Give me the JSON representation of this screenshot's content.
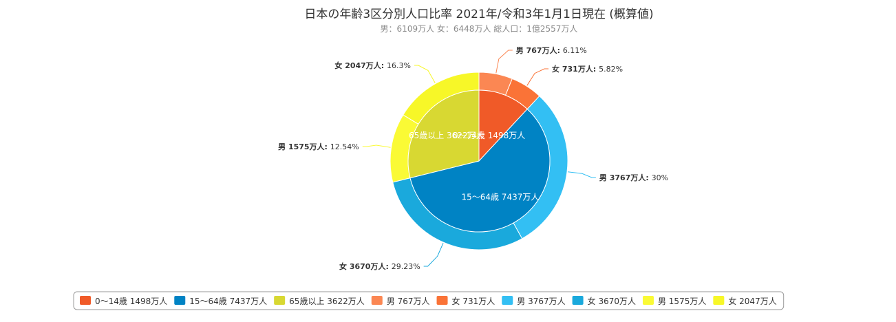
{
  "chart_data": {
    "type": "pie",
    "title": "日本の年齢3区分別人口比率 2021年/令和3年1月1日現在 (概算値)",
    "subtitle": "男：6109万人 女：6448万人 総人口：1億2557万人",
    "inner_ring": [
      {
        "name": "0〜14歳",
        "label": "0〜14歳 1498万人",
        "value": 1498,
        "color": "#f05a28"
      },
      {
        "name": "15〜64歳",
        "label": "15〜64歳 7437万人",
        "value": 7437,
        "color": "#0083c4"
      },
      {
        "name": "65歳以上",
        "label": "65歳以上 3622万人",
        "value": 3622,
        "color": "#d8d832"
      }
    ],
    "outer_ring": [
      {
        "sex": "男",
        "amount": "767万人",
        "label": "男 767万人",
        "value": 767,
        "percent": "6.11%",
        "color": "#fb8753",
        "side": "right"
      },
      {
        "sex": "女",
        "amount": "731万人",
        "label": "女 731万人",
        "value": 731,
        "percent": "5.82%",
        "color": "#fa7337",
        "side": "right"
      },
      {
        "sex": "男",
        "amount": "3767万人",
        "label": "男 3767万人",
        "value": 3767,
        "percent": "30%",
        "color": "#33bff3",
        "side": "right"
      },
      {
        "sex": "女",
        "amount": "3670万人",
        "label": "女 3670万人",
        "value": 3670,
        "percent": "29.23%",
        "color": "#1aa9dc",
        "side": "left"
      },
      {
        "sex": "男",
        "amount": "1575万人",
        "label": "男 1575万人",
        "value": 1575,
        "percent": "12.54%",
        "color": "#fafa35",
        "side": "left"
      },
      {
        "sex": "女",
        "amount": "2047万人",
        "label": "女 2047万人",
        "value": 2047,
        "percent": "16.3%",
        "color": "#f7f728",
        "side": "left"
      }
    ],
    "legend": [
      {
        "label": "0〜14歳 1498万人",
        "color": "#f05a28"
      },
      {
        "label": "15〜64歳 7437万人",
        "color": "#0083c4"
      },
      {
        "label": "65歳以上 3622万人",
        "color": "#d8d832"
      },
      {
        "label": "男 767万人",
        "color": "#fb8753"
      },
      {
        "label": "女 731万人",
        "color": "#fa7337"
      },
      {
        "label": "男 3767万人",
        "color": "#33bff3"
      },
      {
        "label": "女 3670万人",
        "color": "#1aa9dc"
      },
      {
        "label": "男 1575万人",
        "color": "#fafa35"
      },
      {
        "label": "女 2047万人",
        "color": "#f7f728"
      }
    ],
    "legend_position": "bottom"
  }
}
